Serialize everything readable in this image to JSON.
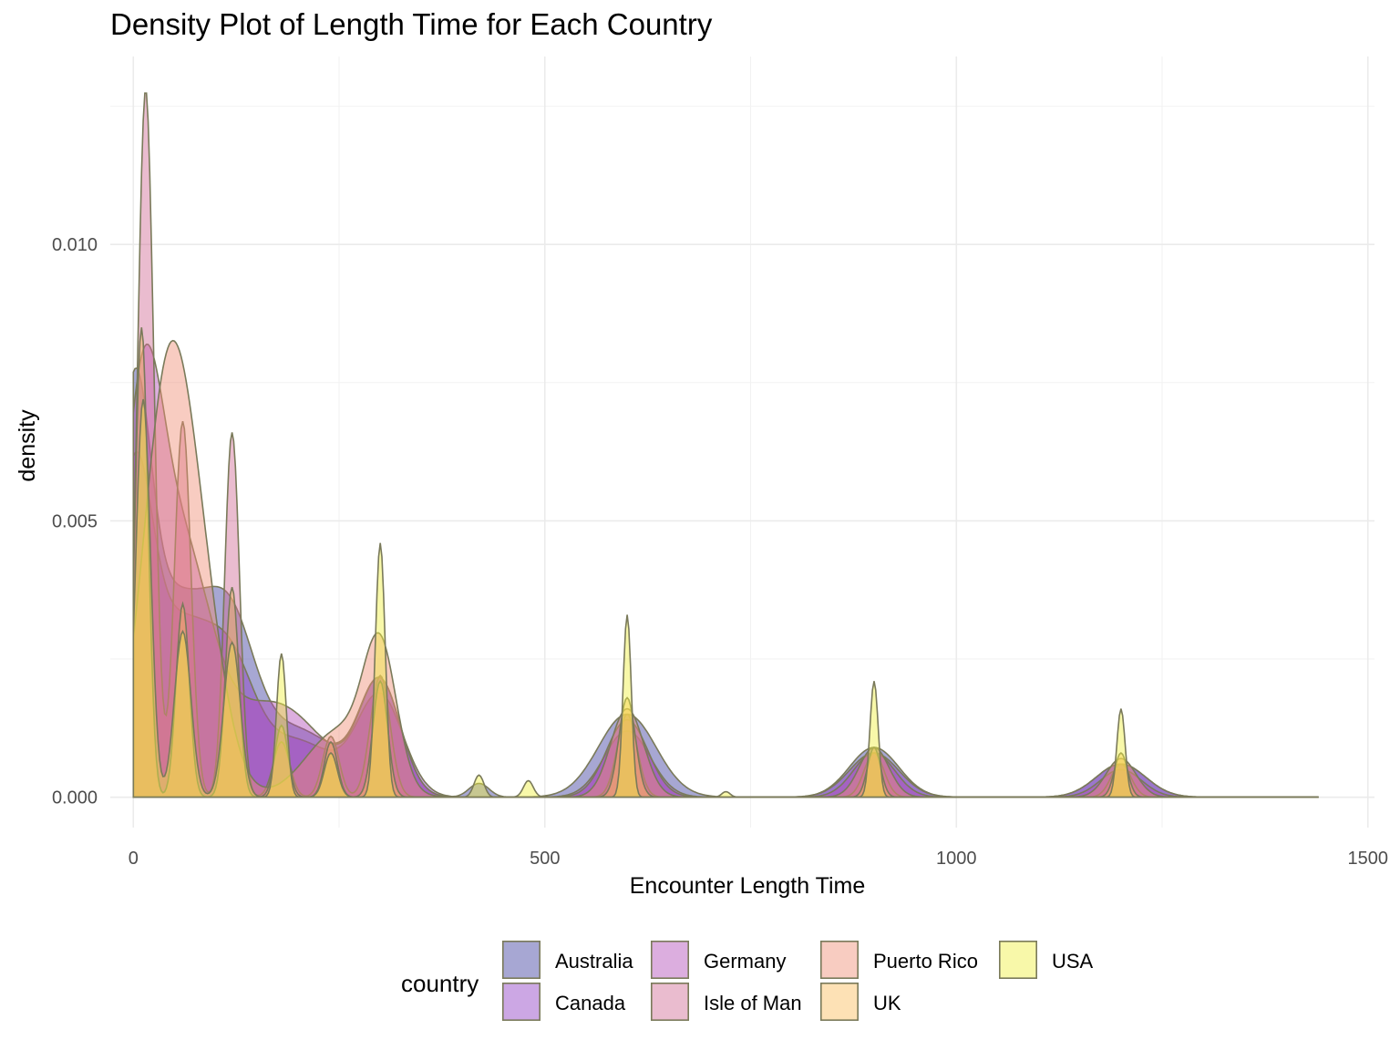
{
  "chart_data": {
    "type": "area",
    "title": "Density Plot of Length Time for Each Country",
    "xlabel": "Encounter Length Time",
    "ylabel": "density",
    "xlim": [
      -28,
      1508
    ],
    "ylim": [
      -0.00055,
      0.0134
    ],
    "x_ticks": [
      0,
      500,
      1000,
      1500
    ],
    "x_tick_labels": [
      "0",
      "500",
      "1000",
      "1500"
    ],
    "y_ticks": [
      0.0,
      0.005,
      0.01
    ],
    "y_tick_labels": [
      "0.000",
      "0.005",
      "0.010"
    ],
    "x_range": [
      0,
      1440
    ],
    "grid": true,
    "legend": {
      "title": "country",
      "position": "bottom",
      "rows": 2
    },
    "outline_color": "#7a7a5a",
    "series": [
      {
        "name": "Australia",
        "color": "#3b3b9e",
        "peaks": [
          [
            0,
            0.0058,
            20
          ],
          [
            50,
            0.0035,
            45
          ],
          [
            120,
            0.0022,
            30
          ],
          [
            200,
            0.0012,
            50
          ],
          [
            300,
            0.002,
            25
          ],
          [
            420,
            0.00025,
            12
          ],
          [
            600,
            0.0015,
            35
          ],
          [
            900,
            0.0009,
            30
          ],
          [
            1200,
            0.0006,
            30
          ]
        ]
      },
      {
        "name": "Canada",
        "color": "#8d3cc4",
        "peaks": [
          [
            0,
            0.005,
            22
          ],
          [
            55,
            0.003,
            40
          ],
          [
            120,
            0.0018,
            30
          ],
          [
            200,
            0.001,
            45
          ],
          [
            300,
            0.0018,
            28
          ],
          [
            600,
            0.0012,
            28
          ],
          [
            900,
            0.0008,
            30
          ],
          [
            1200,
            0.0006,
            30
          ]
        ]
      },
      {
        "name": "Germany",
        "color": "#b24bb9",
        "peaks": [
          [
            10,
            0.0065,
            25
          ],
          [
            60,
            0.004,
            35
          ],
          [
            170,
            0.0017,
            60
          ],
          [
            300,
            0.002,
            25
          ],
          [
            600,
            0.0014,
            25
          ],
          [
            900,
            0.0008,
            25
          ],
          [
            1200,
            0.0005,
            25
          ]
        ]
      },
      {
        "name": "Isle of Man",
        "color": "#d06a95",
        "peaks": [
          [
            15,
            0.0128,
            10
          ],
          [
            60,
            0.0068,
            10
          ],
          [
            120,
            0.0066,
            9
          ],
          [
            180,
            0.001,
            10
          ],
          [
            240,
            0.0011,
            10
          ],
          [
            300,
            0.0022,
            12
          ],
          [
            600,
            0.0015,
            12
          ],
          [
            900,
            0.0008,
            12
          ],
          [
            1200,
            0.0006,
            12
          ]
        ]
      },
      {
        "name": "Puerto Rico",
        "color": "#f08e76",
        "peaks": [
          [
            40,
            0.0068,
            30
          ],
          [
            80,
            0.003,
            30
          ],
          [
            250,
            0.0012,
            40
          ],
          [
            300,
            0.0024,
            20
          ],
          [
            600,
            0.0016,
            20
          ],
          [
            900,
            0.0009,
            18
          ],
          [
            1200,
            0.0007,
            18
          ]
        ]
      },
      {
        "name": "UK",
        "color": "#fbbd5a",
        "peaks": [
          [
            10,
            0.0085,
            8
          ],
          [
            60,
            0.0035,
            8
          ],
          [
            120,
            0.0038,
            8
          ],
          [
            180,
            0.0013,
            8
          ],
          [
            240,
            0.001,
            8
          ],
          [
            300,
            0.0021,
            9
          ],
          [
            600,
            0.0018,
            10
          ],
          [
            900,
            0.0009,
            8
          ],
          [
            1200,
            0.0008,
            8
          ]
        ]
      },
      {
        "name": "USA",
        "color": "#f0f040",
        "peaks": [
          [
            12,
            0.0072,
            9
          ],
          [
            60,
            0.003,
            10
          ],
          [
            120,
            0.0028,
            10
          ],
          [
            180,
            0.0026,
            6
          ],
          [
            240,
            0.0008,
            8
          ],
          [
            300,
            0.0046,
            6
          ],
          [
            420,
            0.0004,
            6
          ],
          [
            480,
            0.0003,
            6
          ],
          [
            600,
            0.0033,
            5
          ],
          [
            720,
            0.0001,
            5
          ],
          [
            900,
            0.0021,
            5
          ],
          [
            1200,
            0.0016,
            5
          ]
        ]
      }
    ]
  }
}
